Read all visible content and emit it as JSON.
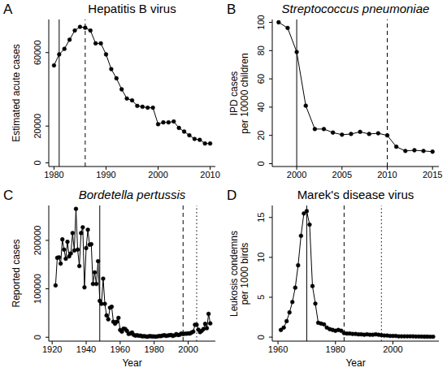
{
  "chart_data": [
    {
      "type": "line",
      "panel": "A",
      "title": "Hepatitis B virus",
      "y_label": "Estimated acute cases",
      "color": "#000000",
      "marker": "circle",
      "line_style": "solid",
      "x": [
        1980,
        1981,
        1982,
        1983,
        1984,
        1985,
        1986,
        1987,
        1988,
        1989,
        1990,
        1991,
        1992,
        1993,
        1994,
        1995,
        1996,
        1997,
        1998,
        1999,
        2000,
        2001,
        2002,
        2003,
        2004,
        2005,
        2006,
        2007,
        2008,
        2009,
        2010
      ],
      "values": [
        53000,
        59000,
        62000,
        67000,
        72000,
        74000,
        73500,
        72000,
        65000,
        65000,
        59000,
        51000,
        46000,
        40000,
        35000,
        34000,
        31000,
        30500,
        30000,
        30000,
        21000,
        22000,
        22000,
        22500,
        19000,
        17000,
        15000,
        13000,
        12500,
        10500,
        10500
      ],
      "xlim": [
        1979,
        2011
      ],
      "xticks": [
        1980,
        1990,
        2000,
        2010
      ],
      "ylim": [
        -2000,
        78000
      ],
      "yticks": [
        0,
        20000,
        60000
      ],
      "vlines": [
        {
          "x": 1981,
          "line_style": "solid"
        },
        {
          "x": 1986,
          "line_style": "dashed"
        }
      ]
    },
    {
      "type": "line",
      "panel": "B",
      "title": "Streptococcus pneumoniae",
      "y_label": "IPD cases\nper 10000 children",
      "color": "#000000",
      "marker": "circle",
      "line_style": "solid",
      "x": [
        1998,
        1999,
        2000,
        2001,
        2002,
        2003,
        2004,
        2005,
        2006,
        2007,
        2008,
        2009,
        2010,
        2011,
        2012,
        2013,
        2014,
        2015
      ],
      "values": [
        100,
        96,
        79,
        41,
        24.5,
        24.5,
        22,
        20.5,
        21,
        22.5,
        21,
        21.5,
        20,
        12,
        9,
        9.5,
        9,
        8.5
      ],
      "xlim": [
        1997.3,
        2015.7
      ],
      "xticks": [
        2000,
        2005,
        2010,
        2015
      ],
      "ylim": [
        -2,
        102
      ],
      "yticks": [
        0,
        20,
        40,
        60,
        80,
        100
      ],
      "vlines": [
        {
          "x": 2000,
          "line_style": "solid"
        },
        {
          "x": 2010,
          "line_style": "dashed"
        }
      ]
    },
    {
      "type": "line",
      "panel": "C",
      "title": "Bordetella pertussis",
      "x_label": "Year",
      "y_label": "Reported cases",
      "color": "#000000",
      "marker": "circle",
      "line_style": "solid",
      "x": [
        1922,
        1923,
        1924,
        1925,
        1926,
        1927,
        1928,
        1929,
        1930,
        1931,
        1932,
        1933,
        1934,
        1935,
        1936,
        1937,
        1938,
        1939,
        1940,
        1941,
        1942,
        1943,
        1944,
        1945,
        1946,
        1947,
        1948,
        1949,
        1950,
        1951,
        1952,
        1953,
        1954,
        1955,
        1956,
        1957,
        1958,
        1959,
        1960,
        1961,
        1962,
        1963,
        1964,
        1965,
        1966,
        1967,
        1968,
        1969,
        1970,
        1971,
        1972,
        1973,
        1974,
        1975,
        1976,
        1977,
        1978,
        1979,
        1980,
        1981,
        1982,
        1983,
        1984,
        1985,
        1986,
        1987,
        1988,
        1989,
        1990,
        1991,
        1992,
        1993,
        1994,
        1995,
        1996,
        1997,
        1998,
        1999,
        2000,
        2001,
        2002,
        2003,
        2004,
        2005,
        2006,
        2007,
        2008,
        2009,
        2010,
        2011,
        2012,
        2013
      ],
      "values": [
        107000,
        164000,
        165000,
        152000,
        202000,
        181000,
        162000,
        197000,
        167000,
        173000,
        215000,
        179000,
        265000,
        181000,
        147000,
        215000,
        227000,
        103000,
        184000,
        222000,
        191000,
        192000,
        110000,
        134000,
        110000,
        157000,
        75000,
        69000,
        121000,
        69000,
        45000,
        37000,
        61000,
        63000,
        32000,
        28000,
        32000,
        40000,
        15000,
        11500,
        17700,
        17100,
        13000,
        6800,
        7700,
        9700,
        4800,
        3300,
        4200,
        3000,
        3300,
        1800,
        2400,
        1700,
        1000,
        2200,
        2100,
        1600,
        1700,
        1200,
        1900,
        2500,
        2300,
        3600,
        4200,
        2800,
        3500,
        4200,
        4600,
        2700,
        4100,
        6600,
        4600,
        5100,
        7800,
        6600,
        7400,
        7300,
        7900,
        7600,
        9800,
        11600,
        25800,
        25600,
        15600,
        10500,
        13300,
        16900,
        27600,
        18700,
        48300,
        28600
      ],
      "xlim": [
        1918,
        2016
      ],
      "xticks": [
        1920,
        1940,
        1960,
        1980,
        2000
      ],
      "ylim": [
        -8000,
        272000
      ],
      "yticks": [
        0,
        100000,
        200000
      ],
      "vlines": [
        {
          "x": 1948,
          "line_style": "solid"
        },
        {
          "x": 1997,
          "line_style": "dashed"
        },
        {
          "x": 2005,
          "line_style": "dotted"
        }
      ]
    },
    {
      "type": "line",
      "panel": "D",
      "title": "Marek's disease virus",
      "x_label": "Year",
      "y_label": "Leukosis condemns\nper 1000 birds",
      "color": "#000000",
      "marker": "circle",
      "line_style": "solid",
      "x": [
        1961,
        1962,
        1963,
        1964,
        1965,
        1966,
        1967,
        1968,
        1969,
        1970,
        1971,
        1972,
        1973,
        1974,
        1975,
        1976,
        1977,
        1978,
        1979,
        1980,
        1981,
        1982,
        1983,
        1984,
        1985,
        1986,
        1987,
        1988,
        1989,
        1990,
        1991,
        1992,
        1993,
        1994,
        1995,
        1996,
        1997,
        1998,
        1999,
        2000,
        2001,
        2002,
        2003,
        2004,
        2005,
        2006,
        2007,
        2008,
        2009,
        2010,
        2011,
        2012,
        2013,
        2014
      ],
      "values": [
        0.9,
        1.2,
        2.0,
        3.1,
        4.4,
        6.2,
        9.0,
        12.7,
        15.5,
        15.8,
        14.1,
        6.4,
        4.2,
        1.8,
        1.7,
        1.6,
        1.2,
        1.0,
        0.9,
        0.8,
        0.9,
        0.8,
        0.5,
        0.45,
        0.45,
        0.4,
        0.4,
        0.35,
        0.35,
        0.3,
        0.35,
        0.3,
        0.3,
        0.35,
        0.3,
        0.25,
        0.2,
        0.2,
        0.15,
        0.15,
        0.15,
        0.1,
        0.1,
        0.1,
        0.1,
        0.1,
        0.1,
        0.08,
        0.08,
        0.07,
        0.06,
        0.06,
        0.05,
        0.05
      ],
      "xlim": [
        1958,
        2016
      ],
      "xticks": [
        1960,
        1980,
        2000
      ],
      "ylim": [
        -0.5,
        16.5
      ],
      "yticks": [
        0,
        5,
        10,
        15
      ],
      "vlines": [
        {
          "x": 1970,
          "line_style": "solid"
        },
        {
          "x": 1983,
          "line_style": "dashed"
        },
        {
          "x": 1996,
          "line_style": "dotted"
        }
      ]
    }
  ]
}
